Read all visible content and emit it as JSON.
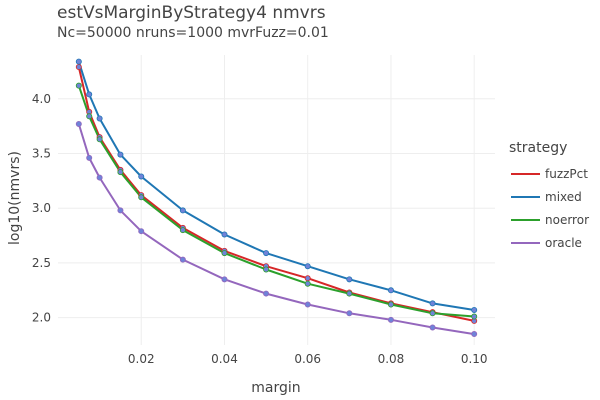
{
  "chart_data": {
    "type": "line",
    "title": "estVsMarginByStrategy4 nmvrs",
    "subtitle": "Nc=50000 nruns=1000 mvrFuzz=0.01",
    "xlabel": "margin",
    "ylabel": "log10(nmvrs)",
    "xlim": [
      0.0,
      0.105
    ],
    "ylim": [
      1.75,
      4.4
    ],
    "xticks": [
      0.02,
      0.04,
      0.06,
      0.08,
      0.1
    ],
    "xtick_labels": [
      "0.02",
      "0.04",
      "0.06",
      "0.08",
      "0.10"
    ],
    "yticks": [
      2.0,
      2.5,
      3.0,
      3.5,
      4.0
    ],
    "ytick_labels": [
      "2.0",
      "2.5",
      "3.0",
      "3.5",
      "4.0"
    ],
    "grid": true,
    "legend_title": "strategy",
    "legend_position": "right",
    "x": [
      0.005,
      0.0075,
      0.01,
      0.015,
      0.02,
      0.03,
      0.04,
      0.05,
      0.06,
      0.07,
      0.08,
      0.09,
      0.1
    ],
    "series": [
      {
        "name": "fuzzPct",
        "color": "#d62728",
        "values": [
          4.29,
          3.88,
          3.65,
          3.35,
          3.12,
          2.82,
          2.61,
          2.47,
          2.36,
          2.23,
          2.13,
          2.05,
          1.97
        ]
      },
      {
        "name": "mixed",
        "color": "#1f77b4",
        "values": [
          4.34,
          4.04,
          3.82,
          3.49,
          3.29,
          2.98,
          2.76,
          2.59,
          2.47,
          2.35,
          2.25,
          2.13,
          2.07
        ]
      },
      {
        "name": "noerror",
        "color": "#2ca02c",
        "values": [
          4.12,
          3.84,
          3.63,
          3.33,
          3.1,
          2.8,
          2.59,
          2.44,
          2.31,
          2.22,
          2.12,
          2.04,
          2.01
        ]
      },
      {
        "name": "oracle",
        "color": "#9467bd",
        "values": [
          3.77,
          3.46,
          3.28,
          2.98,
          2.79,
          2.53,
          2.35,
          2.22,
          2.12,
          2.04,
          1.98,
          1.91,
          1.85
        ]
      }
    ],
    "marker_color": "#6f83d8"
  }
}
